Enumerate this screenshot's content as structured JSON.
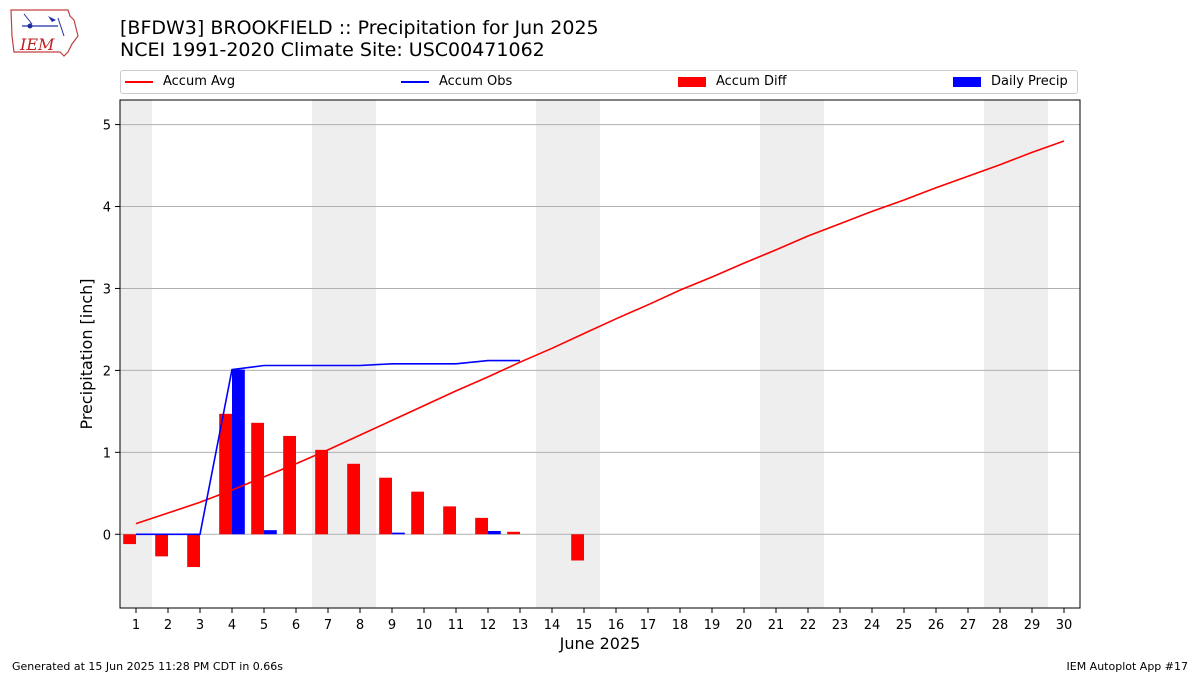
{
  "title": {
    "line1": "[BFDW3] BROOKFIELD :: Precipitation for Jun 2025",
    "line2": "NCEI 1991-2020 Climate Site: USC00471062"
  },
  "legend": [
    {
      "label": "Accum Avg",
      "kind": "line",
      "color": "#ff0000"
    },
    {
      "label": "Accum Obs",
      "kind": "line",
      "color": "#0000ff"
    },
    {
      "label": "Accum Diff",
      "kind": "bar",
      "color": "#ff0000"
    },
    {
      "label": "Daily Precip",
      "kind": "bar",
      "color": "#0000ff"
    }
  ],
  "footer": {
    "left": "Generated at 15 Jun 2025 11:28 PM CDT in 0.66s",
    "right": "IEM Autoplot App #17"
  },
  "logo": {
    "text": "IEM"
  },
  "chart_data": {
    "type": "bar",
    "title": "[BFDW3] BROOKFIELD :: Precipitation for Jun 2025",
    "xlabel": "June 2025",
    "ylabel": "Precipitation [inch]",
    "ylim": [
      -0.9,
      5.3
    ],
    "xlim": [
      0.5,
      30.5
    ],
    "yticks": [
      0,
      1,
      2,
      3,
      4,
      5
    ],
    "ytick_labels": [
      "0",
      "1",
      "2",
      "3",
      "4",
      "5"
    ],
    "x": [
      1,
      2,
      3,
      4,
      5,
      6,
      7,
      8,
      9,
      10,
      11,
      12,
      13,
      14,
      15,
      16,
      17,
      18,
      19,
      20,
      21,
      22,
      23,
      24,
      25,
      26,
      27,
      28,
      29,
      30
    ],
    "xtick_labels": [
      "1",
      "2",
      "3",
      "4",
      "5",
      "6",
      "7",
      "8",
      "9",
      "10",
      "11",
      "12",
      "13",
      "14",
      "15",
      "16",
      "17",
      "18",
      "19",
      "20",
      "21",
      "22",
      "23",
      "24",
      "25",
      "26",
      "27",
      "28",
      "29",
      "30"
    ],
    "grid": "horizontal",
    "weekend_shading": [
      [
        0.5,
        1.5
      ],
      [
        6.5,
        8.5
      ],
      [
        13.5,
        15.5
      ],
      [
        20.5,
        22.5
      ],
      [
        27.5,
        29.5
      ]
    ],
    "series": [
      {
        "name": "Accum Avg",
        "type": "line",
        "color": "#ff0000",
        "x": [
          1,
          2,
          3,
          4,
          5,
          6,
          7,
          8,
          9,
          10,
          11,
          12,
          13,
          14,
          15,
          16,
          17,
          18,
          19,
          20,
          21,
          22,
          23,
          24,
          25,
          26,
          27,
          28,
          29,
          30
        ],
        "values": [
          0.13,
          0.26,
          0.39,
          0.54,
          0.7,
          0.86,
          1.03,
          1.21,
          1.39,
          1.57,
          1.75,
          1.92,
          2.1,
          2.27,
          2.45,
          2.63,
          2.8,
          2.98,
          3.14,
          3.31,
          3.47,
          3.64,
          3.79,
          3.94,
          4.08,
          4.23,
          4.37,
          4.51,
          4.66,
          4.8
        ]
      },
      {
        "name": "Accum Obs",
        "type": "line",
        "color": "#0000ff",
        "x": [
          1,
          2,
          3,
          4,
          5,
          6,
          7,
          8,
          9,
          10,
          11,
          12,
          13
        ],
        "values": [
          0.0,
          0.0,
          0.0,
          2.01,
          2.06,
          2.06,
          2.06,
          2.06,
          2.08,
          2.08,
          2.08,
          2.12,
          2.12
        ]
      },
      {
        "name": "Accum Diff",
        "type": "bar",
        "color": "#ff0000",
        "x": [
          1,
          2,
          3,
          4,
          5,
          6,
          7,
          8,
          9,
          10,
          11,
          12,
          13,
          15
        ],
        "values": [
          -0.12,
          -0.27,
          -0.4,
          1.47,
          1.36,
          1.2,
          1.03,
          0.86,
          0.69,
          0.52,
          0.34,
          0.2,
          0.03,
          -0.32
        ]
      },
      {
        "name": "Daily Precip",
        "type": "bar",
        "color": "#0000ff",
        "x": [
          4,
          5,
          9,
          12
        ],
        "values": [
          2.01,
          0.05,
          0.02,
          0.04
        ]
      }
    ]
  }
}
